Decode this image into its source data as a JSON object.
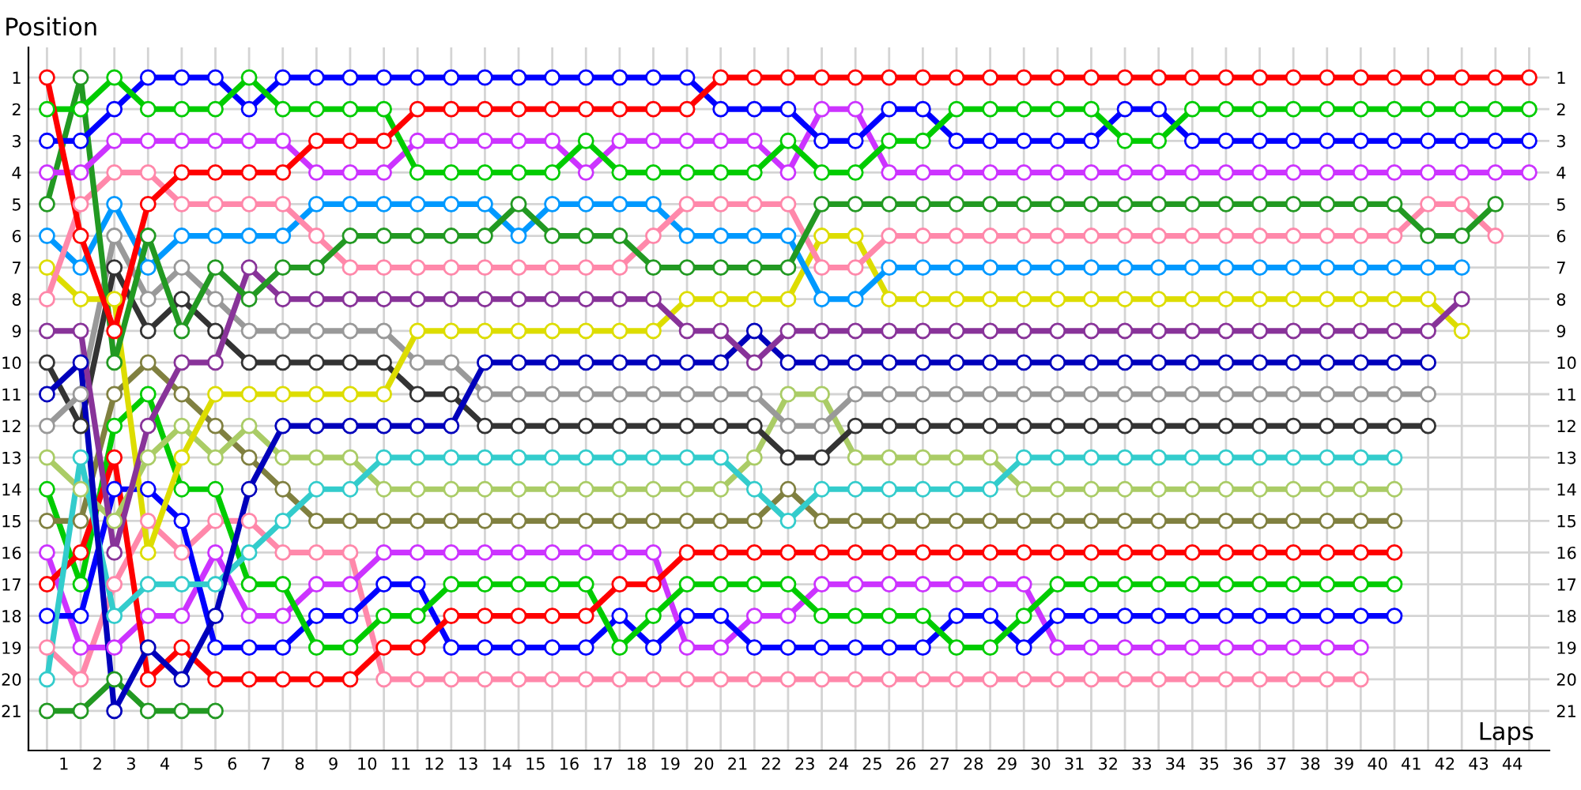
{
  "chart_data": {
    "type": "line",
    "xlabel": "Laps",
    "ylabel": "Position",
    "marker": "circle",
    "line_style": "solid",
    "grid": true,
    "x": [
      0,
      1,
      2,
      3,
      4,
      5,
      6,
      7,
      8,
      9,
      10,
      11,
      12,
      13,
      14,
      15,
      16,
      17,
      18,
      19,
      20,
      21,
      22,
      23,
      24,
      25,
      26,
      27,
      28,
      29,
      30,
      31,
      32,
      33,
      34,
      35,
      36,
      37,
      38,
      39,
      40,
      41,
      42,
      43,
      44
    ],
    "xlim": [
      -0.55,
      44.6
    ],
    "xticks": [
      {
        "value": 0,
        "label": null
      },
      {
        "value": 0.5,
        "label": "1"
      },
      {
        "value": 1,
        "label": null
      },
      {
        "value": 1.5,
        "label": "2"
      },
      {
        "value": 2,
        "label": null
      },
      {
        "value": 2.5,
        "label": "3"
      },
      {
        "value": 3,
        "label": null
      },
      {
        "value": 3.5,
        "label": "4"
      },
      {
        "value": 4,
        "label": null
      },
      {
        "value": 4.5,
        "label": "5"
      },
      {
        "value": 5,
        "label": null
      },
      {
        "value": 5.5,
        "label": "6"
      },
      {
        "value": 6,
        "label": null
      },
      {
        "value": 6.5,
        "label": "7"
      },
      {
        "value": 7,
        "label": null
      },
      {
        "value": 7.5,
        "label": "8"
      },
      {
        "value": 8,
        "label": null
      },
      {
        "value": 8.5,
        "label": "9"
      },
      {
        "value": 9,
        "label": null
      },
      {
        "value": 9.5,
        "label": "10"
      },
      {
        "value": 10,
        "label": null
      },
      {
        "value": 10.5,
        "label": "11"
      },
      {
        "value": 11,
        "label": null
      },
      {
        "value": 11.5,
        "label": "12"
      },
      {
        "value": 12,
        "label": null
      },
      {
        "value": 12.5,
        "label": "13"
      },
      {
        "value": 13,
        "label": null
      },
      {
        "value": 13.5,
        "label": "14"
      },
      {
        "value": 14,
        "label": null
      },
      {
        "value": 14.5,
        "label": "15"
      },
      {
        "value": 15,
        "label": null
      },
      {
        "value": 15.5,
        "label": "16"
      },
      {
        "value": 16,
        "label": null
      },
      {
        "value": 16.5,
        "label": "17"
      },
      {
        "value": 17,
        "label": null
      },
      {
        "value": 17.5,
        "label": "18"
      },
      {
        "value": 18,
        "label": null
      },
      {
        "value": 18.5,
        "label": "19"
      },
      {
        "value": 19,
        "label": null
      },
      {
        "value": 19.5,
        "label": "20"
      },
      {
        "value": 20,
        "label": null
      },
      {
        "value": 20.5,
        "label": "21"
      },
      {
        "value": 21,
        "label": null
      },
      {
        "value": 21.5,
        "label": "22"
      },
      {
        "value": 22,
        "label": null
      },
      {
        "value": 22.5,
        "label": "23"
      },
      {
        "value": 23,
        "label": null
      },
      {
        "value": 23.5,
        "label": "24"
      },
      {
        "value": 24,
        "label": null
      },
      {
        "value": 24.5,
        "label": "25"
      },
      {
        "value": 25,
        "label": null
      },
      {
        "value": 25.5,
        "label": "26"
      },
      {
        "value": 26,
        "label": null
      },
      {
        "value": 26.5,
        "label": "27"
      },
      {
        "value": 27,
        "label": null
      },
      {
        "value": 27.5,
        "label": "28"
      },
      {
        "value": 28,
        "label": null
      },
      {
        "value": 28.5,
        "label": "29"
      },
      {
        "value": 29,
        "label": null
      },
      {
        "value": 29.5,
        "label": "30"
      },
      {
        "value": 30,
        "label": null
      },
      {
        "value": 30.5,
        "label": "31"
      },
      {
        "value": 31,
        "label": null
      },
      {
        "value": 31.5,
        "label": "32"
      },
      {
        "value": 32,
        "label": null
      },
      {
        "value": 32.5,
        "label": "33"
      },
      {
        "value": 33,
        "label": null
      },
      {
        "value": 33.5,
        "label": "34"
      },
      {
        "value": 34,
        "label": null
      },
      {
        "value": 34.5,
        "label": "35"
      },
      {
        "value": 35,
        "label": null
      },
      {
        "value": 35.5,
        "label": "36"
      },
      {
        "value": 36,
        "label": null
      },
      {
        "value": 36.5,
        "label": "37"
      },
      {
        "value": 37,
        "label": null
      },
      {
        "value": 37.5,
        "label": "38"
      },
      {
        "value": 38,
        "label": null
      },
      {
        "value": 38.5,
        "label": "39"
      },
      {
        "value": 39,
        "label": null
      },
      {
        "value": 39.5,
        "label": "40"
      },
      {
        "value": 40,
        "label": null
      },
      {
        "value": 40.5,
        "label": "41"
      },
      {
        "value": 41,
        "label": null
      },
      {
        "value": 41.5,
        "label": "42"
      },
      {
        "value": 42,
        "label": null
      },
      {
        "value": 42.5,
        "label": "43"
      },
      {
        "value": 43,
        "label": null
      },
      {
        "value": 43.5,
        "label": "44"
      },
      {
        "value": 44,
        "label": null
      }
    ],
    "ylim": [
      22.25,
      0.05
    ],
    "yticks": [
      1,
      2,
      3,
      4,
      5,
      6,
      7,
      8,
      9,
      10,
      11,
      12,
      13,
      14,
      15,
      16,
      17,
      18,
      19,
      20,
      21
    ],
    "y2lim": [
      22.25,
      0.05
    ],
    "y2ticks": [
      1,
      2,
      3,
      4,
      5,
      6,
      7,
      8,
      9,
      10,
      11,
      12,
      13,
      14,
      15,
      16,
      17,
      18,
      19,
      20,
      21
    ],
    "series": [
      {
        "color": "#ff0000",
        "values": [
          1,
          6,
          9,
          5,
          4,
          4,
          4,
          4,
          3,
          3,
          3,
          2,
          2,
          2,
          2,
          2,
          2,
          2,
          2,
          2,
          1,
          1,
          1,
          1,
          1,
          1,
          1,
          1,
          1,
          1,
          1,
          1,
          1,
          1,
          1,
          1,
          1,
          1,
          1,
          1,
          1,
          1,
          1,
          1,
          1
        ]
      },
      {
        "color": "#00cc00",
        "values": [
          2,
          2,
          1,
          2,
          2,
          2,
          1,
          2,
          2,
          2,
          2,
          4,
          4,
          4,
          4,
          4,
          3,
          4,
          4,
          4,
          4,
          4,
          3,
          4,
          4,
          3,
          3,
          2,
          2,
          2,
          2,
          2,
          3,
          3,
          2,
          2,
          2,
          2,
          2,
          2,
          2,
          2,
          2,
          2,
          2
        ]
      },
      {
        "color": "#0000ff",
        "values": [
          3,
          3,
          2,
          1,
          1,
          1,
          2,
          1,
          1,
          1,
          1,
          1,
          1,
          1,
          1,
          1,
          1,
          1,
          1,
          1,
          2,
          2,
          2,
          3,
          3,
          2,
          2,
          3,
          3,
          3,
          3,
          3,
          2,
          2,
          3,
          3,
          3,
          3,
          3,
          3,
          3,
          3,
          3,
          3,
          3
        ]
      },
      {
        "color": "#cc33ff",
        "values": [
          4,
          4,
          3,
          3,
          3,
          3,
          3,
          3,
          4,
          4,
          4,
          3,
          3,
          3,
          3,
          3,
          4,
          3,
          3,
          3,
          3,
          3,
          4,
          2,
          2,
          4,
          4,
          4,
          4,
          4,
          4,
          4,
          4,
          4,
          4,
          4,
          4,
          4,
          4,
          4,
          4,
          4,
          4,
          4,
          4
        ]
      },
      {
        "color": "#229922",
        "values": [
          5,
          1,
          10,
          6,
          9,
          7,
          8,
          7,
          7,
          6,
          6,
          6,
          6,
          6,
          5,
          6,
          6,
          6,
          7,
          7,
          7,
          7,
          7,
          5,
          5,
          5,
          5,
          5,
          5,
          5,
          5,
          5,
          5,
          5,
          5,
          5,
          5,
          5,
          5,
          5,
          5,
          6,
          6,
          5,
          null
        ]
      },
      {
        "color": "#ff88aa",
        "values": [
          8,
          5,
          4,
          4,
          5,
          5,
          5,
          5,
          6,
          7,
          7,
          7,
          7,
          7,
          7,
          7,
          7,
          7,
          6,
          5,
          5,
          5,
          5,
          7,
          7,
          6,
          6,
          6,
          6,
          6,
          6,
          6,
          6,
          6,
          6,
          6,
          6,
          6,
          6,
          6,
          6,
          5,
          5,
          6,
          null
        ]
      },
      {
        "color": "#0099ff",
        "values": [
          6,
          7,
          5,
          7,
          6,
          6,
          6,
          6,
          5,
          5,
          5,
          5,
          5,
          5,
          6,
          5,
          5,
          5,
          5,
          6,
          6,
          6,
          6,
          8,
          8,
          7,
          7,
          7,
          7,
          7,
          7,
          7,
          7,
          7,
          7,
          7,
          7,
          7,
          7,
          7,
          7,
          7,
          7,
          null,
          null
        ]
      },
      {
        "color": "#883399",
        "values": [
          9,
          9,
          16,
          12,
          10,
          10,
          7,
          8,
          8,
          8,
          8,
          8,
          8,
          8,
          8,
          8,
          8,
          8,
          8,
          9,
          9,
          10,
          9,
          9,
          9,
          9,
          9,
          9,
          9,
          9,
          9,
          9,
          9,
          9,
          9,
          9,
          9,
          9,
          9,
          9,
          9,
          9,
          8,
          null,
          null
        ]
      },
      {
        "color": "#dddd00",
        "values": [
          7,
          8,
          8,
          16,
          13,
          11,
          11,
          11,
          11,
          11,
          11,
          9,
          9,
          9,
          9,
          9,
          9,
          9,
          9,
          8,
          8,
          8,
          8,
          6,
          6,
          8,
          8,
          8,
          8,
          8,
          8,
          8,
          8,
          8,
          8,
          8,
          8,
          8,
          8,
          8,
          8,
          8,
          9,
          null,
          null
        ]
      },
      {
        "color": "#0000bb",
        "values": [
          11,
          10,
          21,
          19,
          20,
          18,
          14,
          12,
          12,
          12,
          12,
          12,
          12,
          10,
          10,
          10,
          10,
          10,
          10,
          10,
          10,
          9,
          10,
          10,
          10,
          10,
          10,
          10,
          10,
          10,
          10,
          10,
          10,
          10,
          10,
          10,
          10,
          10,
          10,
          10,
          10,
          10,
          null,
          null,
          null
        ]
      },
      {
        "color": "#999999",
        "values": [
          12,
          11,
          6,
          8,
          7,
          8,
          9,
          9,
          9,
          9,
          9,
          10,
          10,
          11,
          11,
          11,
          11,
          11,
          11,
          11,
          11,
          11,
          12,
          12,
          11,
          11,
          11,
          11,
          11,
          11,
          11,
          11,
          11,
          11,
          11,
          11,
          11,
          11,
          11,
          11,
          11,
          11,
          null,
          null,
          null
        ]
      },
      {
        "color": "#333333",
        "values": [
          10,
          12,
          7,
          9,
          8,
          9,
          10,
          10,
          10,
          10,
          10,
          11,
          11,
          12,
          12,
          12,
          12,
          12,
          12,
          12,
          12,
          12,
          13,
          13,
          12,
          12,
          12,
          12,
          12,
          12,
          12,
          12,
          12,
          12,
          12,
          12,
          12,
          12,
          12,
          12,
          12,
          12,
          null,
          null,
          null
        ]
      },
      {
        "color": "#33cccc",
        "values": [
          20,
          13,
          18,
          17,
          17,
          17,
          16,
          15,
          14,
          14,
          13,
          13,
          13,
          13,
          13,
          13,
          13,
          13,
          13,
          13,
          13,
          14,
          15,
          14,
          14,
          14,
          14,
          14,
          14,
          13,
          13,
          13,
          13,
          13,
          13,
          13,
          13,
          13,
          13,
          13,
          13,
          null,
          null,
          null,
          null
        ]
      },
      {
        "color": "#aacc66",
        "values": [
          13,
          14,
          15,
          13,
          12,
          13,
          12,
          13,
          13,
          13,
          14,
          14,
          14,
          14,
          14,
          14,
          14,
          14,
          14,
          14,
          14,
          13,
          11,
          11,
          13,
          13,
          13,
          13,
          13,
          14,
          14,
          14,
          14,
          14,
          14,
          14,
          14,
          14,
          14,
          14,
          14,
          null,
          null,
          null,
          null
        ]
      },
      {
        "color": "#808040",
        "values": [
          15,
          15,
          11,
          10,
          11,
          12,
          13,
          14,
          15,
          15,
          15,
          15,
          15,
          15,
          15,
          15,
          15,
          15,
          15,
          15,
          15,
          15,
          14,
          15,
          15,
          15,
          15,
          15,
          15,
          15,
          15,
          15,
          15,
          15,
          15,
          15,
          15,
          15,
          15,
          15,
          15,
          null,
          null,
          null,
          null
        ]
      },
      {
        "color": "#ff0000",
        "values": [
          17,
          16,
          13,
          20,
          19,
          20,
          20,
          20,
          20,
          20,
          19,
          19,
          18,
          18,
          18,
          18,
          18,
          17,
          17,
          16,
          16,
          16,
          16,
          16,
          16,
          16,
          16,
          16,
          16,
          16,
          16,
          16,
          16,
          16,
          16,
          16,
          16,
          16,
          16,
          16,
          16,
          null,
          null,
          null,
          null
        ]
      },
      {
        "color": "#00cc00",
        "values": [
          14,
          17,
          12,
          11,
          14,
          14,
          17,
          17,
          19,
          19,
          18,
          18,
          17,
          17,
          17,
          17,
          17,
          19,
          18,
          17,
          17,
          17,
          17,
          18,
          18,
          18,
          18,
          19,
          19,
          18,
          17,
          17,
          17,
          17,
          17,
          17,
          17,
          17,
          17,
          17,
          17,
          null,
          null,
          null,
          null
        ]
      },
      {
        "color": "#0000ff",
        "values": [
          18,
          18,
          14,
          14,
          15,
          19,
          19,
          19,
          18,
          18,
          17,
          17,
          19,
          19,
          19,
          19,
          19,
          18,
          19,
          18,
          18,
          19,
          19,
          19,
          19,
          19,
          19,
          18,
          18,
          19,
          18,
          18,
          18,
          18,
          18,
          18,
          18,
          18,
          18,
          18,
          18,
          null,
          null,
          null,
          null
        ]
      },
      {
        "color": "#cc33ff",
        "values": [
          16,
          19,
          19,
          18,
          18,
          16,
          18,
          18,
          17,
          17,
          16,
          16,
          16,
          16,
          16,
          16,
          16,
          16,
          16,
          19,
          19,
          18,
          18,
          17,
          17,
          17,
          17,
          17,
          17,
          17,
          19,
          19,
          19,
          19,
          19,
          19,
          19,
          19,
          19,
          19,
          null,
          null,
          null,
          null,
          null
        ]
      },
      {
        "color": "#ff88aa",
        "values": [
          19,
          20,
          17,
          15,
          16,
          15,
          15,
          16,
          16,
          16,
          20,
          20,
          20,
          20,
          20,
          20,
          20,
          20,
          20,
          20,
          20,
          20,
          20,
          20,
          20,
          20,
          20,
          20,
          20,
          20,
          20,
          20,
          20,
          20,
          20,
          20,
          20,
          20,
          20,
          20,
          null,
          null,
          null,
          null,
          null
        ]
      },
      {
        "color": "#229922",
        "values": [
          21,
          21,
          20,
          21,
          21,
          21,
          null,
          null,
          null,
          null,
          null,
          null,
          null,
          null,
          null,
          null,
          null,
          null,
          null,
          null,
          null,
          null,
          null,
          null,
          null,
          null,
          null,
          null,
          null,
          null,
          null,
          null,
          null,
          null,
          null,
          null,
          null,
          null,
          null,
          null,
          null,
          null,
          null,
          null,
          null
        ]
      }
    ]
  }
}
